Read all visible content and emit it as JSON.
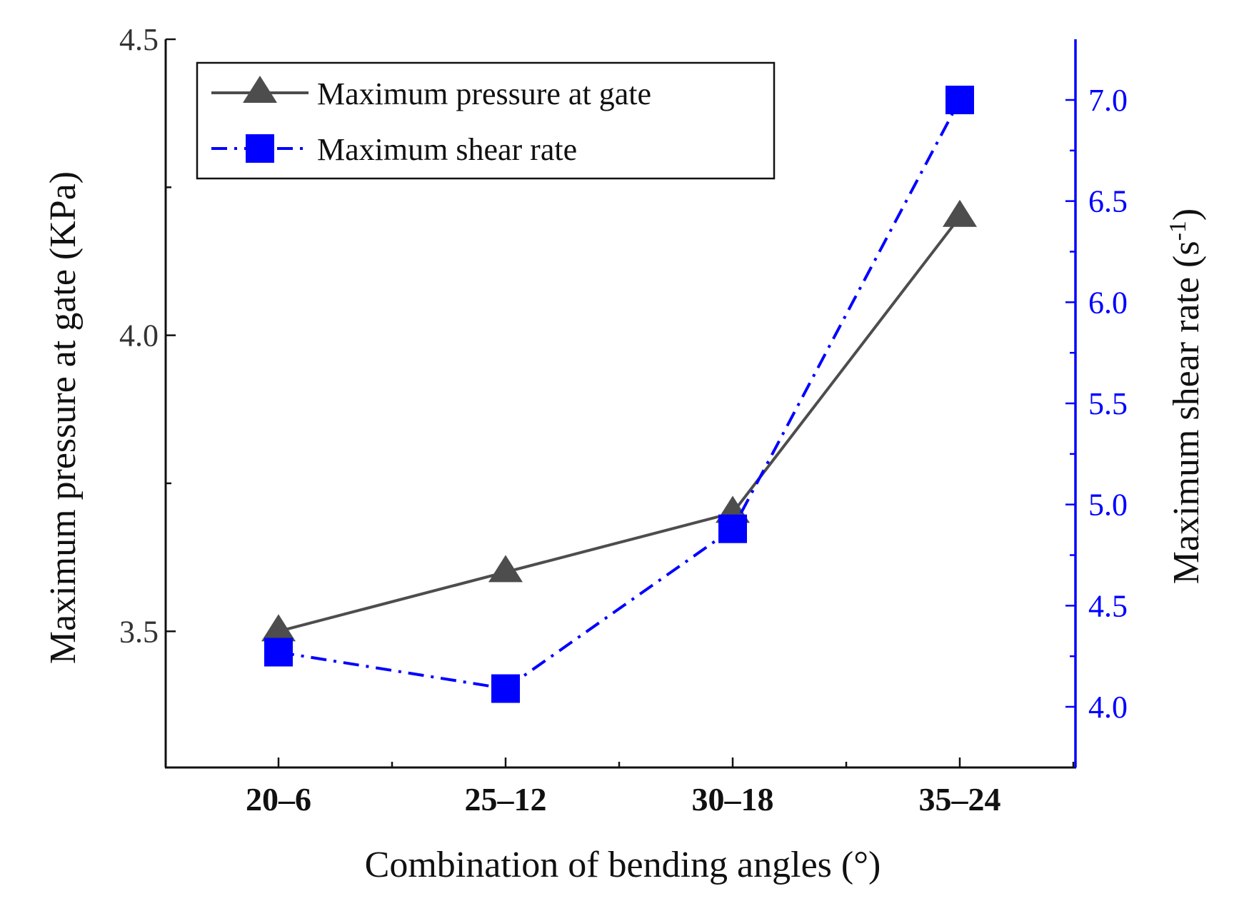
{
  "chart_data": {
    "type": "line",
    "categories": [
      "20–6",
      "25–12",
      "30–18",
      "35–24"
    ],
    "xlabel": "Combination of bending angles (°)",
    "ylabel_left": "Maximum pressure at gate (KPa)",
    "ylabel_right_prefix": "Maximum shear rate (s",
    "ylabel_right_sup": "-1",
    "ylabel_right_suffix": ")",
    "ylim_left": [
      3.27,
      4.5
    ],
    "ylim_right": [
      3.7,
      7.3
    ],
    "yticks_left": [
      "3.5",
      "4.0",
      "4.5"
    ],
    "yticks_right": [
      "4.0",
      "4.5",
      "5.0",
      "5.5",
      "6.0",
      "6.5",
      "7.0"
    ],
    "legend_position": "top-left",
    "series": [
      {
        "name": "Maximum pressure at gate",
        "axis": "left",
        "marker": "triangle",
        "line_style": "solid",
        "color": "#4d4d4d",
        "values": [
          3.5,
          3.6,
          3.7,
          4.2
        ]
      },
      {
        "name": "Maximum shear rate",
        "axis": "right",
        "marker": "square",
        "line_style": "dash-dot",
        "color": "#0000ff",
        "values": [
          4.27,
          4.09,
          4.88,
          7.0
        ]
      }
    ],
    "colors": {
      "axis": "#111111",
      "right_axis": "#0000ff"
    }
  }
}
